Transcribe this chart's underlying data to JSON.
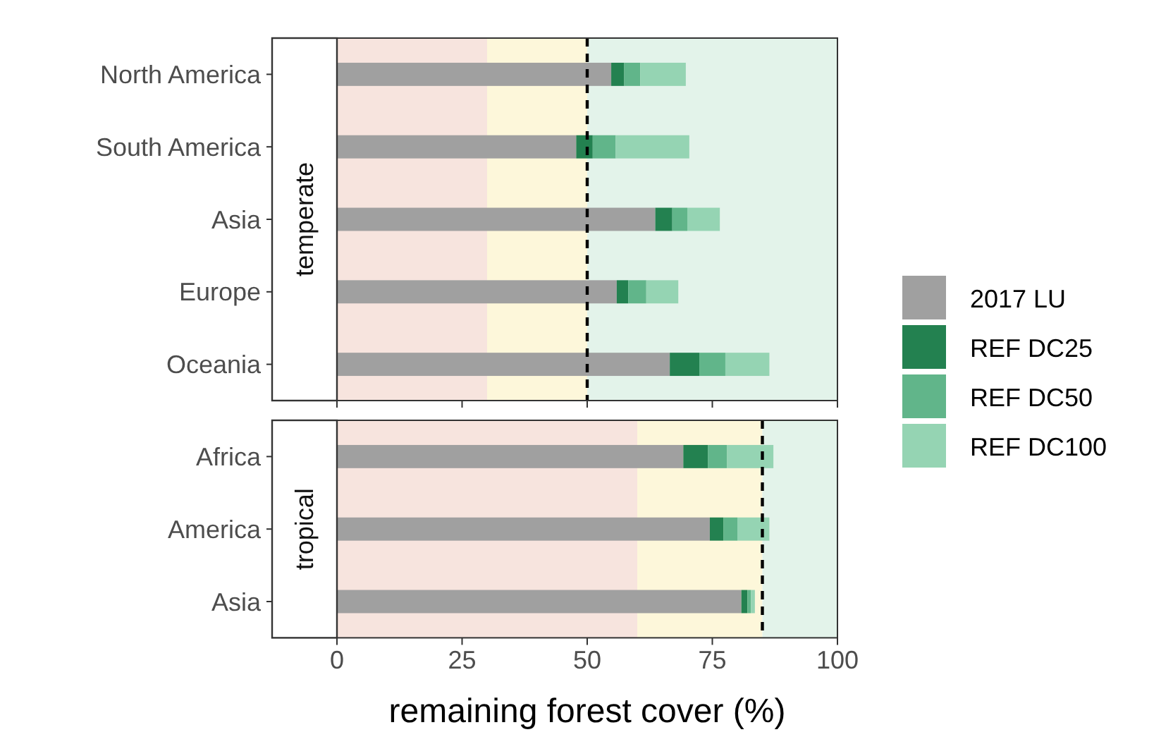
{
  "chart_data": [
    {
      "type": "bar",
      "orientation": "horizontal",
      "stacked": true,
      "title": "temperate",
      "categories": [
        "North America",
        "South America",
        "Asia",
        "Europe",
        "Oceania"
      ],
      "series": [
        {
          "name": "2017 LU",
          "color": "#a0a0a0",
          "values": [
            54.8,
            47.8,
            63.6,
            55.9,
            66.5
          ]
        },
        {
          "name": "REF DC25",
          "color": "#238150",
          "values": [
            2.6,
            3.3,
            3.4,
            2.3,
            5.9
          ]
        },
        {
          "name": "REF DC50",
          "color": "#61b58a",
          "values": [
            3.2,
            4.6,
            3.0,
            3.6,
            5.2
          ]
        },
        {
          "name": "REF DC100",
          "color": "#95d4b3",
          "values": [
            9.1,
            14.7,
            6.5,
            6.4,
            8.8
          ]
        }
      ],
      "xlim": [
        0,
        100
      ],
      "xticks": [
        0,
        25,
        50,
        75,
        100
      ],
      "tick_labels": "y",
      "legend": "right",
      "bands": [
        {
          "axis": "x",
          "from": 0,
          "to": 30,
          "color": "#f7e4de"
        },
        {
          "axis": "x",
          "from": 30,
          "to": 50,
          "color": "#fdf7da"
        },
        {
          "axis": "x",
          "from": 50,
          "to": 100,
          "color": "#e3f3ea"
        }
      ],
      "ref_lines": [
        {
          "axis": "x",
          "value": 50,
          "color": "#000000",
          "line_style": "dashed"
        }
      ]
    },
    {
      "type": "bar",
      "orientation": "horizontal",
      "stacked": true,
      "title": "tropical",
      "categories": [
        "Africa",
        "America",
        "Asia"
      ],
      "xlabel": "remaining forest cover (%)",
      "series": [
        {
          "color": "#a0a0a0",
          "values": [
            69.2,
            74.5,
            80.8
          ]
        },
        {
          "color": "#238150",
          "values": [
            4.9,
            2.7,
            1.2
          ]
        },
        {
          "color": "#61b58a",
          "values": [
            3.8,
            2.8,
            0.7
          ]
        },
        {
          "color": "#95d4b3",
          "values": [
            9.3,
            6.4,
            0.8
          ]
        }
      ],
      "xlim": [
        0,
        100
      ],
      "xticks": [
        0,
        25,
        50,
        75,
        100
      ],
      "bands": [
        {
          "axis": "x",
          "from": 0,
          "to": 60,
          "color": "#f7e4de"
        },
        {
          "axis": "x",
          "from": 60,
          "to": 85,
          "color": "#fdf7da"
        },
        {
          "axis": "x",
          "from": 85,
          "to": 100,
          "color": "#e3f3ea"
        }
      ],
      "ref_lines": [
        {
          "axis": "x",
          "value": 85,
          "color": "#000000",
          "line_style": "dashed"
        }
      ]
    }
  ]
}
